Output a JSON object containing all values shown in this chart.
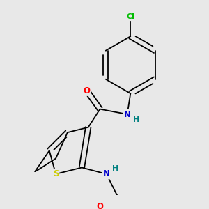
{
  "background_color": "#e8e8e8",
  "atom_colors": {
    "C": "#000000",
    "N": "#0000cd",
    "O": "#ff0000",
    "S": "#cccc00",
    "Cl": "#00bb00",
    "H": "#008080"
  },
  "figsize": [
    3.0,
    3.0
  ],
  "dpi": 100
}
